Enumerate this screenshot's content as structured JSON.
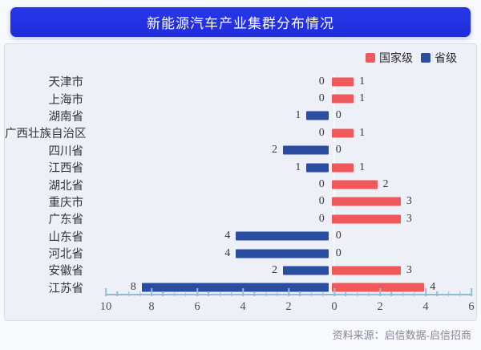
{
  "title": "新能源汽车产业集群分布情况",
  "legend": {
    "items": [
      {
        "label": "国家级",
        "color": "#f0595c"
      },
      {
        "label": "省级",
        "color": "#2b4da0"
      }
    ]
  },
  "footer": {
    "source": "资料来源：启信数据-启信招商"
  },
  "colors": {
    "title_bar": "#2330e0",
    "national": "#f0595c",
    "provincial": "#2b4da0",
    "panel_bg": "#edf0f7",
    "axis": "#8fbcd9",
    "zero_line": "#f8fafd"
  },
  "chart_data": {
    "type": "bar",
    "variant": "horizontal-diverging",
    "title": "新能源汽车产业集群分布情况",
    "categories": [
      "天津市",
      "上海市",
      "湖南省",
      "广西壮族自治区",
      "四川省",
      "江西省",
      "湖北省",
      "重庆市",
      "广东省",
      "山东省",
      "河北省",
      "安徽省",
      "江苏省"
    ],
    "series": [
      {
        "name": "国家级",
        "side": "right",
        "color": "#f0595c",
        "values": [
          1,
          1,
          0,
          1,
          0,
          1,
          2,
          3,
          3,
          0,
          0,
          3,
          4
        ]
      },
      {
        "name": "省级",
        "side": "left",
        "color": "#2b4da0",
        "values": [
          0,
          0,
          1,
          0,
          2,
          1,
          0,
          0,
          0,
          4,
          4,
          2,
          8
        ]
      }
    ],
    "axis": {
      "left_max": 10,
      "right_max": 6,
      "major_tick_labels": [
        10,
        8,
        6,
        4,
        2,
        0,
        2,
        4,
        6
      ],
      "minor_step": 0.5,
      "grid": false
    },
    "legend_position": "top-right",
    "value_labels": true,
    "ylabel": "",
    "xlabel": ""
  }
}
